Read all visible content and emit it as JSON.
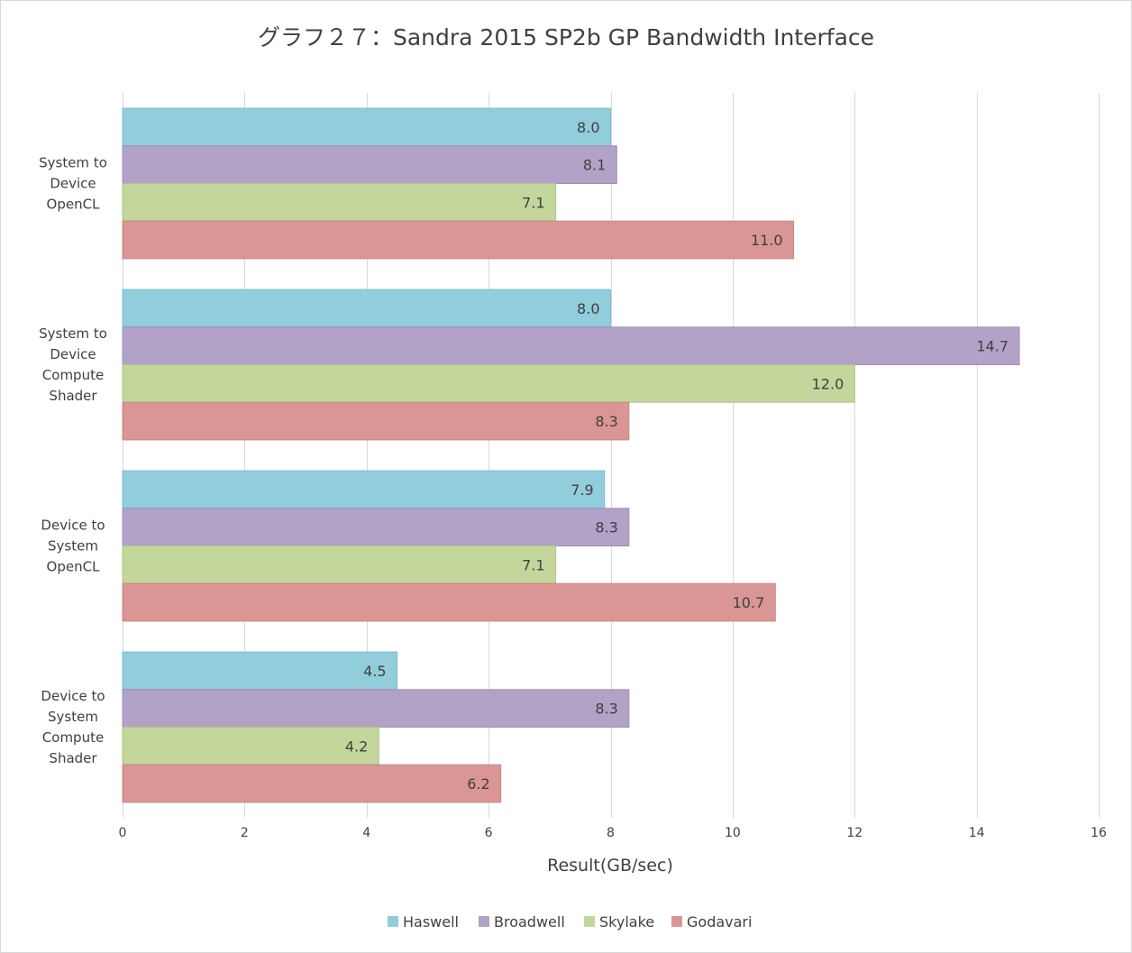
{
  "chart_data": {
    "type": "bar",
    "orientation": "horizontal",
    "title": "グラフ２７：Sandra 2015 SP2b GP Bandwidth Interface",
    "xlabel": "Result(GB/sec)",
    "ylabel": "",
    "xlim": [
      0,
      16
    ],
    "xticks": [
      0,
      2,
      4,
      6,
      8,
      10,
      12,
      14,
      16
    ],
    "grid": true,
    "legend_position": "bottom",
    "categories": [
      [
        "System to",
        "Device",
        "OpenCL"
      ],
      [
        "System to",
        "Device",
        "Compute",
        "Shader"
      ],
      [
        "Device to",
        "System",
        "OpenCL"
      ],
      [
        "Device to",
        "System",
        "Compute",
        "Shader"
      ]
    ],
    "series": [
      {
        "name": "Haswell",
        "color": "#92cddc",
        "values": [
          8.0,
          8.0,
          7.9,
          4.5
        ],
        "labels": [
          "8.0",
          "8.0",
          "7.9",
          "4.5"
        ]
      },
      {
        "name": "Broadwell",
        "color": "#b3a2c7",
        "values": [
          8.1,
          14.7,
          8.3,
          8.3
        ],
        "labels": [
          "8.1",
          "14.7",
          "8.3",
          "8.3"
        ]
      },
      {
        "name": "Skylake",
        "color": "#c3d69b",
        "values": [
          7.1,
          12.0,
          7.1,
          4.2
        ],
        "labels": [
          "7.1",
          "12.0",
          "7.1",
          "4.2"
        ]
      },
      {
        "name": "Godavari",
        "color": "#d99694",
        "values": [
          11.0,
          8.3,
          10.7,
          6.2
        ],
        "labels": [
          "11.0",
          "8.3",
          "10.7",
          "6.2"
        ]
      }
    ]
  }
}
